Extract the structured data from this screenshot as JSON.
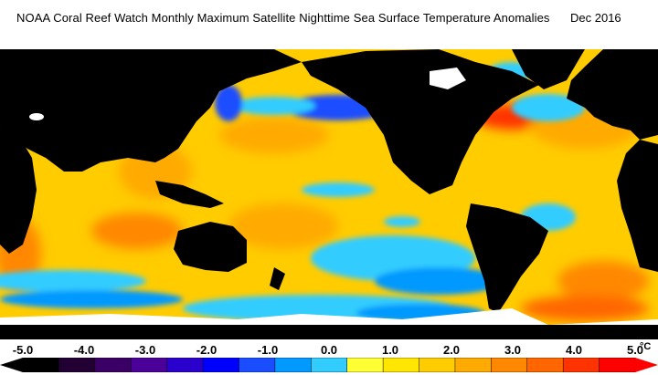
{
  "header": {
    "title": "NOAA Coral Reef Watch Monthly Maximum Satellite Nighttime Sea Surface Temperature Anomalies",
    "date": "Dec 2016"
  },
  "legend": {
    "ticks": [
      {
        "value": -5.0,
        "label": "-5.0"
      },
      {
        "value": -4.0,
        "label": "-4.0"
      },
      {
        "value": -3.0,
        "label": "-3.0"
      },
      {
        "value": -2.0,
        "label": "-2.0"
      },
      {
        "value": -1.0,
        "label": "-1.0"
      },
      {
        "value": 0.0,
        "label": "0.0"
      },
      {
        "value": 1.0,
        "label": "1.0"
      },
      {
        "value": 2.0,
        "label": "2.0"
      },
      {
        "value": 3.0,
        "label": "3.0"
      },
      {
        "value": 4.0,
        "label": "4.0"
      },
      {
        "value": 5.0,
        "label": "5.0"
      }
    ],
    "unit": "°C",
    "min": -5.0,
    "max": 5.0,
    "colors": [
      "#000000",
      "#220033",
      "#3a0066",
      "#4b0099",
      "#2a00cc",
      "#0000ff",
      "#1a4dff",
      "#0099ff",
      "#33ccff",
      "#ffff33",
      "#ffe600",
      "#ffcc00",
      "#ffaa00",
      "#ff8800",
      "#ff6600",
      "#ff3300",
      "#ff0000"
    ]
  },
  "map": {
    "land_color": "#000000",
    "ice_color": "#ffffff",
    "ocean_base_color": "#ffcc00"
  }
}
